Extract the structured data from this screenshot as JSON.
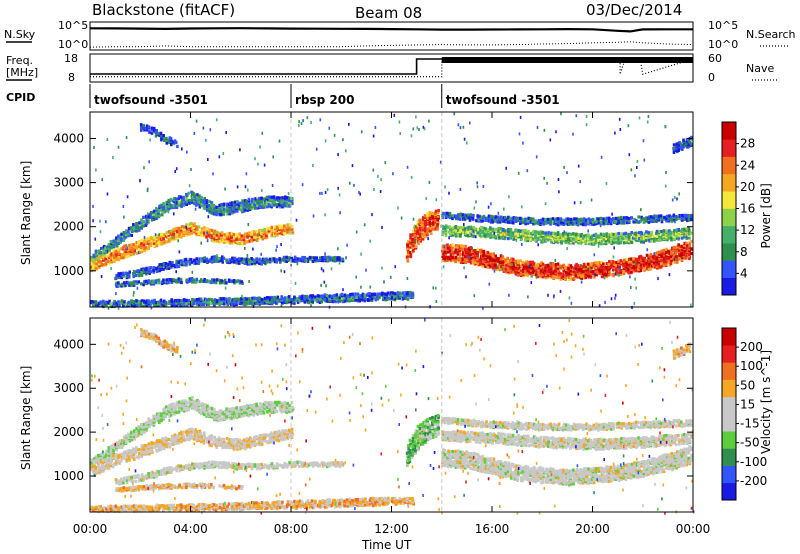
{
  "chart_data": [
    {
      "type": "line",
      "name": "header-noise-panel",
      "left_label": "N.Sky",
      "right_label": "N.Search",
      "left_ticks": [
        "10^5",
        "10^0"
      ],
      "right_ticks": [
        "10^5",
        "10^0"
      ],
      "x": [
        0,
        1,
        2,
        3,
        4,
        5,
        6,
        7,
        8,
        9,
        10,
        11,
        12,
        13,
        14,
        15,
        16,
        17,
        18,
        19,
        20,
        21,
        21.5,
        22,
        23,
        24
      ],
      "series": [
        {
          "values": [
            30000,
            28000,
            25000,
            22000,
            27000,
            30000,
            32000,
            28000,
            25000,
            24000,
            23000,
            22000,
            20000,
            18000,
            15000,
            15000,
            16000,
            17000,
            18000,
            20000,
            18000,
            8000,
            6000,
            17000,
            18000,
            18000
          ]
        },
        {
          "values": [
            1.5,
            2,
            2,
            3,
            2,
            2,
            2,
            2,
            2,
            2,
            2,
            3,
            4,
            5,
            6,
            5,
            5,
            6,
            8,
            10,
            15,
            20,
            25,
            15,
            8,
            6
          ]
        }
      ]
    },
    {
      "type": "line",
      "name": "header-frequency-panel",
      "left_label": "Freq.",
      "left_unit": "[MHz]",
      "right_label": "Nave",
      "left_ticks": [
        "18",
        "8"
      ],
      "right_ticks": [
        "60",
        "0"
      ],
      "freq_x": [
        0,
        13,
        13,
        14,
        14,
        24
      ],
      "freq_mhz": [
        10.5,
        10.5,
        18,
        18,
        18,
        18
      ],
      "nave_x": [
        0,
        14,
        14,
        21.1,
        21.1,
        21.3,
        21.9,
        22,
        24
      ],
      "nave": [
        7,
        7,
        62,
        62,
        15,
        62,
        62,
        15,
        62
      ]
    },
    {
      "type": "table",
      "name": "cpid-bar",
      "label": "CPID",
      "segments": [
        {
          "start": 0,
          "end": 8,
          "text": "twofsound -3501"
        },
        {
          "start": 8,
          "end": 14,
          "text": "rbsp 200"
        },
        {
          "start": 14,
          "end": 24,
          "text": "twofsound -3501"
        }
      ]
    },
    {
      "type": "heatmap",
      "name": "power-panel",
      "title": "Blackstone (fitACF)",
      "subtitle": "Beam 08",
      "date": "03/Dec/2014",
      "ylabel": "Slant Range [km]",
      "ylim": [
        180,
        4600
      ],
      "yticks": [
        1000,
        2000,
        3000,
        4000
      ],
      "xlim": [
        0,
        24
      ],
      "colorbar": {
        "label": "Power [dB]",
        "ticks": [
          "4",
          "8",
          "12",
          "16",
          "20",
          "24",
          "28"
        ],
        "colors": [
          "#1a1ae6",
          "#3355ff",
          "#2f8f4f",
          "#46b06a",
          "#8ed24a",
          "#f5e63c",
          "#f5a623",
          "#f07020",
          "#e62020",
          "#c80000"
        ],
        "range": [
          0,
          32
        ]
      },
      "bands": [
        {
          "times": [
            0,
            1,
            2,
            3,
            4,
            5,
            6,
            7,
            8
          ],
          "range_km": [
            1300,
            1700,
            2100,
            2500,
            2700,
            2400,
            2500,
            2600,
            2600
          ],
          "width_km": [
            220,
            200,
            220,
            260,
            260,
            240,
            260,
            240,
            220
          ],
          "level": 0.3
        },
        {
          "times": [
            0,
            1,
            2,
            3,
            4,
            5,
            6,
            7,
            8
          ],
          "range_km": [
            1150,
            1400,
            1600,
            1800,
            2000,
            1800,
            1750,
            1900,
            2000
          ],
          "width_km": [
            260,
            260,
            260,
            240,
            240,
            230,
            230,
            220,
            220
          ],
          "level": 0.75
        },
        {
          "times": [
            1,
            2,
            3,
            4,
            5,
            6,
            7,
            8,
            9,
            10
          ],
          "range_km": [
            900,
            1000,
            1150,
            1250,
            1300,
            1250,
            1250,
            1300,
            1300,
            1300
          ],
          "width_km": [
            120,
            140,
            140,
            130,
            130,
            130,
            120,
            110,
            100,
            100
          ],
          "level": 0.2
        },
        {
          "times": [
            1,
            2,
            3,
            4,
            5,
            6
          ],
          "range_km": [
            720,
            760,
            800,
            820,
            800,
            780
          ],
          "width_km": [
            80,
            90,
            90,
            90,
            80,
            80
          ],
          "level": 0.25
        },
        {
          "times": [
            0,
            2,
            4,
            6,
            8,
            10,
            12,
            12.8
          ],
          "range_km": [
            280,
            300,
            320,
            340,
            380,
            420,
            460,
            470
          ],
          "width_km": [
            120,
            130,
            140,
            150,
            160,
            170,
            160,
            150
          ],
          "level": 0.25
        },
        {
          "times": [
            14,
            15,
            16,
            17,
            18,
            19,
            20,
            21,
            22,
            23,
            24
          ],
          "range_km": [
            1450,
            1400,
            1250,
            1100,
            1050,
            1000,
            1050,
            1100,
            1200,
            1350,
            1550
          ],
          "width_km": [
            380,
            380,
            360,
            340,
            340,
            340,
            340,
            340,
            360,
            380,
            400
          ],
          "level": 0.9
        },
        {
          "times": [
            14,
            16,
            18,
            20,
            22,
            24
          ],
          "range_km": [
            1950,
            1900,
            1800,
            1750,
            1800,
            1900
          ],
          "width_km": [
            220,
            230,
            230,
            230,
            230,
            230
          ],
          "level": 0.45
        },
        {
          "times": [
            14,
            16,
            18,
            20,
            22,
            24
          ],
          "range_km": [
            2300,
            2200,
            2150,
            2150,
            2200,
            2250
          ],
          "width_km": [
            120,
            140,
            140,
            140,
            140,
            140
          ],
          "level": 0.25
        },
        {
          "times": [
            12.6,
            13,
            13.4,
            13.8
          ],
          "range_km": [
            1500,
            1900,
            2100,
            2200
          ],
          "width_km": [
            500,
            550,
            500,
            450
          ],
          "level": 0.85
        },
        {
          "times": [
            2,
            2.5,
            3,
            3.5
          ],
          "range_km": [
            4300,
            4200,
            4000,
            3900
          ],
          "width_km": [
            150,
            150,
            150,
            150
          ],
          "level": 0.2
        },
        {
          "times": [
            23.2,
            23.6,
            24
          ],
          "range_km": [
            3800,
            3900,
            4000
          ],
          "width_km": [
            200,
            200,
            200
          ],
          "level": 0.15
        }
      ]
    },
    {
      "type": "heatmap",
      "name": "velocity-panel",
      "ylabel": "Slant Range [km]",
      "xlabel": "Time UT",
      "ylim": [
        180,
        4600
      ],
      "yticks": [
        1000,
        2000,
        3000,
        4000
      ],
      "xlim": [
        0,
        24
      ],
      "xticks": [
        "00:00",
        "04:00",
        "08:00",
        "12:00",
        "16:00",
        "20:00",
        "00:00"
      ],
      "colorbar": {
        "label": "Velocity [m s^-1]",
        "ticks": [
          "200",
          "100",
          "50",
          "15",
          "-15",
          "-50",
          "-100",
          "-200"
        ],
        "colors": [
          "#1a1ae6",
          "#3355ff",
          "#2f8f4f",
          "#5ccd3c",
          "#c8c8c8",
          "#c8c8c8",
          "#f5a623",
          "#f07020",
          "#e62020",
          "#c80000"
        ],
        "range": [
          -250,
          250
        ]
      },
      "bands": [
        {
          "times": [
            0,
            1,
            2,
            3,
            4,
            5,
            6,
            7,
            8
          ],
          "range_km": [
            1300,
            1700,
            2100,
            2500,
            2700,
            2400,
            2500,
            2600,
            2600
          ],
          "width_km": [
            220,
            200,
            220,
            260,
            260,
            240,
            260,
            240,
            220
          ],
          "level": 0.45
        },
        {
          "times": [
            0,
            1,
            2,
            3,
            4,
            5,
            6,
            7,
            8
          ],
          "range_km": [
            1150,
            1400,
            1600,
            1800,
            2000,
            1800,
            1750,
            1900,
            2000
          ],
          "width_km": [
            260,
            260,
            260,
            240,
            240,
            230,
            230,
            220,
            220
          ],
          "level": 0.55
        },
        {
          "times": [
            1,
            2,
            3,
            4,
            5,
            6,
            7,
            8,
            9,
            10
          ],
          "range_km": [
            900,
            1000,
            1150,
            1250,
            1300,
            1250,
            1250,
            1300,
            1300,
            1300
          ],
          "width_km": [
            120,
            140,
            140,
            130,
            130,
            130,
            120,
            110,
            100,
            100
          ],
          "level": 0.5
        },
        {
          "times": [
            1,
            2,
            3,
            4,
            5,
            6
          ],
          "range_km": [
            720,
            760,
            800,
            820,
            800,
            780
          ],
          "width_km": [
            80,
            90,
            90,
            90,
            80,
            80
          ],
          "level": 0.62
        },
        {
          "times": [
            0,
            2,
            4,
            6,
            8,
            10,
            12,
            12.8
          ],
          "range_km": [
            280,
            300,
            320,
            340,
            380,
            420,
            460,
            470
          ],
          "width_km": [
            120,
            130,
            140,
            150,
            160,
            170,
            160,
            150
          ],
          "level": 0.62
        },
        {
          "times": [
            14,
            15,
            16,
            17,
            18,
            19,
            20,
            21,
            22,
            23,
            24
          ],
          "range_km": [
            1450,
            1400,
            1250,
            1100,
            1050,
            1000,
            1050,
            1100,
            1200,
            1350,
            1550
          ],
          "width_km": [
            380,
            380,
            360,
            340,
            340,
            340,
            340,
            340,
            360,
            380,
            400
          ],
          "level": 0.5
        },
        {
          "times": [
            14,
            16,
            18,
            20,
            22,
            24
          ],
          "range_km": [
            1950,
            1900,
            1800,
            1750,
            1800,
            1900
          ],
          "width_km": [
            220,
            230,
            230,
            230,
            230,
            230
          ],
          "level": 0.5
        },
        {
          "times": [
            14,
            16,
            18,
            20,
            22,
            24
          ],
          "range_km": [
            2300,
            2200,
            2150,
            2150,
            2200,
            2250
          ],
          "width_km": [
            120,
            140,
            140,
            140,
            140,
            140
          ],
          "level": 0.5
        },
        {
          "times": [
            12.6,
            13,
            13.4,
            13.8
          ],
          "range_km": [
            1500,
            1900,
            2100,
            2200
          ],
          "width_km": [
            500,
            550,
            500,
            450
          ],
          "level": 0.35
        },
        {
          "times": [
            2,
            2.5,
            3,
            3.5
          ],
          "range_km": [
            4300,
            4200,
            4000,
            3900
          ],
          "width_km": [
            150,
            150,
            150,
            150
          ],
          "level": 0.62
        },
        {
          "times": [
            23.2,
            23.6,
            24
          ],
          "range_km": [
            3800,
            3900,
            4000
          ],
          "width_km": [
            200,
            200,
            200
          ],
          "level": 0.62
        }
      ]
    }
  ]
}
